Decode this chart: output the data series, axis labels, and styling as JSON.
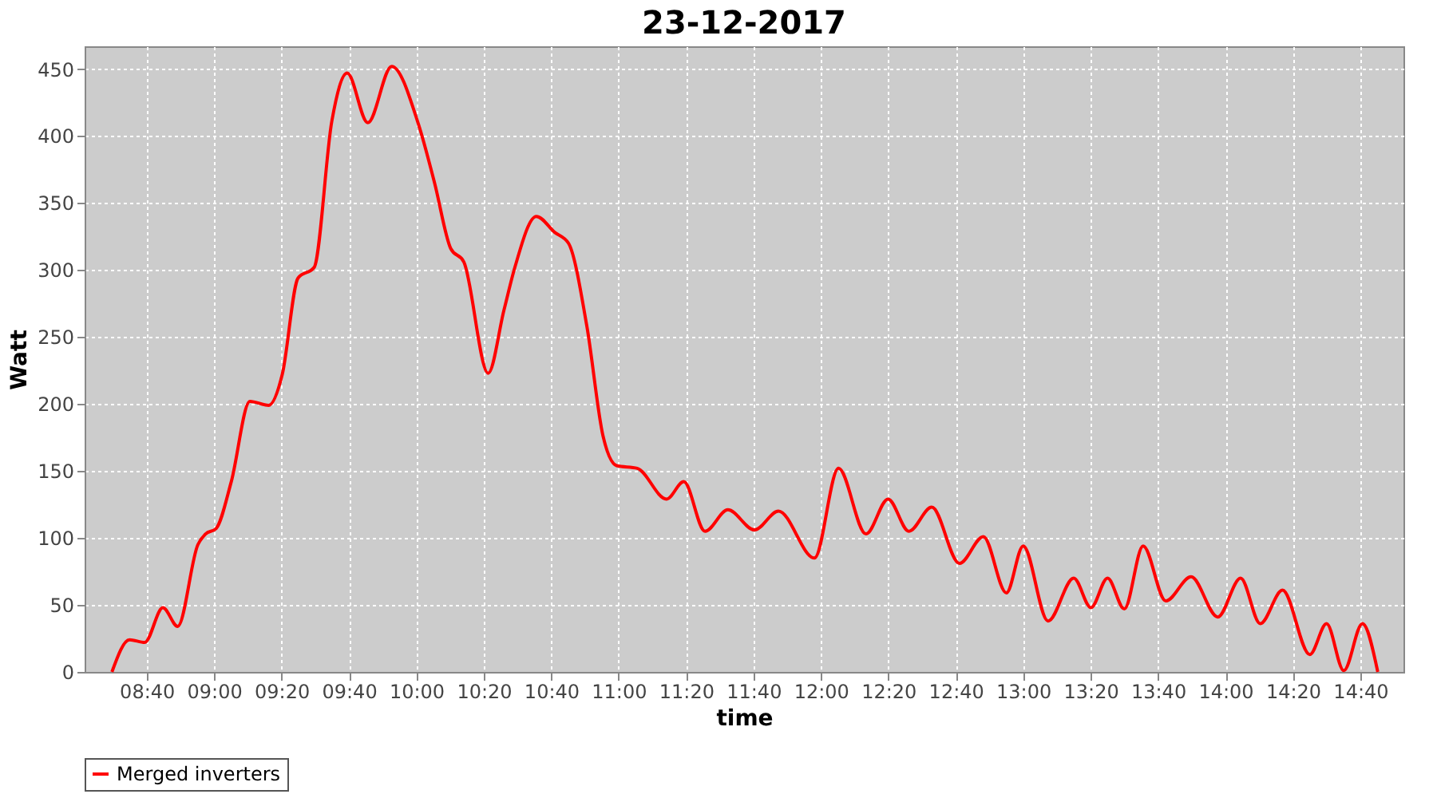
{
  "chart_data": {
    "type": "line",
    "title": "23-12-2017",
    "xlabel": "time",
    "ylabel": "Watt",
    "series": [
      {
        "name": "Merged inverters",
        "color": "#ff0000",
        "x": [
          8.495,
          8.582,
          8.657,
          8.747,
          8.82,
          8.92,
          8.958,
          9.01,
          9.085,
          9.177,
          9.27,
          9.337,
          9.415,
          9.495,
          9.582,
          9.658,
          9.76,
          9.878,
          10.01,
          10.09,
          10.17,
          10.235,
          10.355,
          10.433,
          10.487,
          10.593,
          10.685,
          10.752,
          10.843,
          10.923,
          10.99,
          11.092,
          11.237,
          11.322,
          11.427,
          11.54,
          11.672,
          11.79,
          11.968,
          12.087,
          12.223,
          12.332,
          12.435,
          12.548,
          12.685,
          12.803,
          12.917,
          13.0,
          13.123,
          13.25,
          13.335,
          13.417,
          13.5,
          13.593,
          13.705,
          13.83,
          13.962,
          14.075,
          14.172,
          14.282,
          14.417,
          14.5,
          14.585,
          14.677,
          14.753
        ],
        "values": [
          0,
          24,
          22,
          48,
          34,
          95,
          103,
          107,
          142,
          202,
          199,
          222,
          294,
          302,
          411,
          447,
          410,
          452,
          409,
          365,
          316,
          306,
          223,
          270,
          302,
          340,
          328,
          320,
          258,
          176,
          154,
          152,
          129,
          142,
          105,
          121,
          106,
          120,
          85,
          152,
          103,
          129,
          105,
          123,
          81,
          101,
          59,
          94,
          38,
          70,
          48,
          70,
          47,
          94,
          53,
          71,
          41,
          70,
          36,
          61,
          13,
          36,
          1,
          36,
          0
        ]
      }
    ],
    "xlim": [
      8.36,
      14.88
    ],
    "xticks": [
      {
        "value": 8.6667,
        "label": "08:40"
      },
      {
        "value": 9.0,
        "label": "09:00"
      },
      {
        "value": 9.3333,
        "label": "09:20"
      },
      {
        "value": 9.6667,
        "label": "09:40"
      },
      {
        "value": 10.0,
        "label": "10:00"
      },
      {
        "value": 10.3333,
        "label": "10:20"
      },
      {
        "value": 10.6667,
        "label": "10:40"
      },
      {
        "value": 11.0,
        "label": "11:00"
      },
      {
        "value": 11.3333,
        "label": "11:20"
      },
      {
        "value": 11.6667,
        "label": "11:40"
      },
      {
        "value": 12.0,
        "label": "12:00"
      },
      {
        "value": 12.3333,
        "label": "12:20"
      },
      {
        "value": 12.6667,
        "label": "12:40"
      },
      {
        "value": 13.0,
        "label": "13:00"
      },
      {
        "value": 13.3333,
        "label": "13:20"
      },
      {
        "value": 13.6667,
        "label": "13:40"
      },
      {
        "value": 14.0,
        "label": "14:00"
      },
      {
        "value": 14.3333,
        "label": "14:20"
      },
      {
        "value": 14.6667,
        "label": "14:40"
      }
    ],
    "ylim": [
      0,
      467
    ],
    "yticks": [
      0,
      50,
      100,
      150,
      200,
      250,
      300,
      350,
      400,
      450
    ],
    "grid": true,
    "legend": "bottom",
    "marker": "none",
    "line_style": "solid"
  }
}
